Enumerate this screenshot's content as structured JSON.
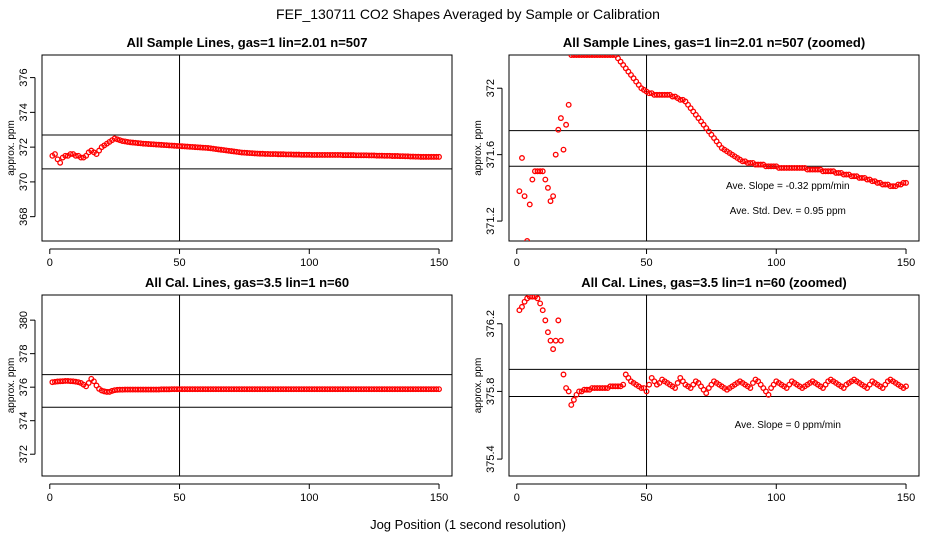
{
  "title": "FEF_130711  CO2 Shapes Averaged by Sample or Calibration",
  "xlabel": "Jog Position (1 second resolution)",
  "colors": {
    "points": "#ff0000",
    "axes": "#000000"
  },
  "chart_data": [
    {
      "type": "scatter",
      "title": "All Sample Lines, gas=1 lin=2.01 n=507",
      "ylabel": "approx. ppm",
      "xlim": [
        -3,
        155
      ],
      "ylim": [
        366.6,
        377.3
      ],
      "xticks": [
        0,
        50,
        100,
        150
      ],
      "yticks": [
        368,
        370,
        372,
        374,
        376
      ],
      "hlines": [
        372.7,
        370.75
      ],
      "vline": 50,
      "annotations": [],
      "x_start": 1,
      "x_step": 1,
      "y": [
        371.5,
        371.6,
        371.3,
        371.1,
        371.4,
        371.5,
        371.5,
        371.6,
        371.6,
        371.5,
        371.5,
        371.4,
        371.4,
        371.5,
        371.7,
        371.8,
        371.7,
        371.6,
        371.8,
        372.0,
        372.1,
        372.2,
        372.3,
        372.4,
        372.5,
        372.45,
        372.4,
        372.35,
        372.33,
        372.3,
        372.28,
        372.26,
        372.25,
        372.23,
        372.22,
        372.2,
        372.19,
        372.18,
        372.17,
        372.16,
        372.15,
        372.14,
        372.13,
        372.12,
        372.11,
        372.1,
        372.09,
        372.08,
        372.07,
        372.06,
        372.05,
        372.04,
        372.03,
        372.02,
        372.01,
        372.0,
        371.99,
        371.98,
        371.97,
        371.96,
        371.95,
        371.93,
        371.91,
        371.89,
        371.87,
        371.85,
        371.83,
        371.81,
        371.79,
        371.77,
        371.75,
        371.73,
        371.71,
        371.69,
        371.68,
        371.67,
        371.66,
        371.65,
        371.64,
        371.63,
        371.62,
        371.62,
        371.61,
        371.61,
        371.6,
        371.6,
        371.6,
        371.59,
        371.59,
        371.59,
        371.58,
        371.58,
        371.58,
        371.57,
        371.57,
        371.57,
        371.56,
        371.56,
        371.56,
        371.56,
        371.55,
        371.55,
        371.55,
        371.55,
        371.55,
        371.55,
        371.55,
        371.55,
        371.55,
        371.55,
        371.55,
        371.55,
        371.54,
        371.54,
        371.54,
        371.54,
        371.54,
        371.53,
        371.53,
        371.53,
        371.53,
        371.53,
        371.52,
        371.52,
        371.52,
        371.51,
        371.51,
        371.51,
        371.5,
        371.5,
        371.5,
        371.49,
        371.49,
        371.49,
        371.48,
        371.48,
        371.47,
        371.47,
        371.46,
        371.46,
        371.45,
        371.45,
        371.44,
        371.44,
        371.44,
        371.44,
        371.44,
        371.44,
        371.44,
        371.44
      ]
    },
    {
      "type": "scatter",
      "title": "All Sample Lines, gas=1 lin=2.01 n=507 (zoomed)",
      "ylabel": "approx. ppm",
      "xlim": [
        -3,
        155
      ],
      "ylim": [
        371.08,
        372.2
      ],
      "xticks": [
        0,
        50,
        100,
        150
      ],
      "yticks": [
        371.2,
        371.6,
        372.0
      ],
      "hlines": [
        371.745,
        371.53
      ],
      "vline": 50,
      "annotations": [
        "Ave. Slope =  -0.32  ppm/min",
        "Ave. Std. Dev. =  0.95  ppm"
      ],
      "x_start": 1,
      "x_step": 1,
      "y": [
        371.38,
        371.58,
        371.35,
        371.08,
        371.3,
        371.45,
        371.5,
        371.5,
        371.5,
        371.5,
        371.45,
        371.4,
        371.32,
        371.35,
        371.6,
        371.75,
        371.82,
        371.63,
        371.78,
        371.9,
        372.2,
        372.2,
        372.2,
        372.2,
        372.2,
        372.2,
        372.2,
        372.2,
        372.2,
        372.2,
        372.2,
        372.2,
        372.2,
        372.2,
        372.2,
        372.2,
        372.2,
        372.2,
        372.18,
        372.16,
        372.14,
        372.12,
        372.1,
        372.08,
        372.06,
        372.04,
        372.02,
        372.0,
        371.99,
        371.98,
        371.97,
        371.97,
        371.96,
        371.96,
        371.96,
        371.96,
        371.96,
        371.96,
        371.96,
        371.95,
        371.95,
        371.94,
        371.93,
        371.93,
        371.92,
        371.9,
        371.88,
        371.86,
        371.84,
        371.82,
        371.8,
        371.78,
        371.76,
        371.74,
        371.72,
        371.7,
        371.68,
        371.66,
        371.64,
        371.63,
        371.62,
        371.61,
        371.6,
        371.59,
        371.58,
        371.57,
        371.56,
        371.56,
        371.55,
        371.55,
        371.55,
        371.54,
        371.54,
        371.54,
        371.54,
        371.53,
        371.53,
        371.53,
        371.53,
        371.53,
        371.52,
        371.52,
        371.52,
        371.52,
        371.52,
        371.52,
        371.52,
        371.52,
        371.52,
        371.52,
        371.52,
        371.51,
        371.51,
        371.51,
        371.51,
        371.51,
        371.51,
        371.5,
        371.5,
        371.5,
        371.5,
        371.5,
        371.49,
        371.49,
        371.49,
        371.48,
        371.48,
        371.48,
        371.47,
        371.47,
        371.47,
        371.46,
        371.46,
        371.46,
        371.45,
        371.45,
        371.44,
        371.44,
        371.43,
        371.43,
        371.42,
        371.42,
        371.42,
        371.41,
        371.41,
        371.41,
        371.42,
        371.42,
        371.43,
        371.43
      ]
    },
    {
      "type": "scatter",
      "title": "All Cal. Lines, gas=3.5 lin=1 n=60",
      "ylabel": "approx. ppm",
      "xlim": [
        -3,
        155
      ],
      "ylim": [
        370.7,
        381.5
      ],
      "xticks": [
        0,
        50,
        100,
        150
      ],
      "yticks": [
        372,
        374,
        376,
        378,
        380
      ],
      "hlines": [
        376.75,
        374.8
      ],
      "vline": 50,
      "annotations": [],
      "x_start": 1,
      "x_step": 1,
      "y": [
        376.3,
        376.32,
        376.34,
        376.35,
        376.36,
        376.37,
        376.37,
        376.36,
        376.35,
        376.33,
        376.3,
        376.25,
        376.15,
        376.05,
        376.25,
        376.5,
        376.35,
        376.1,
        375.9,
        375.8,
        375.75,
        375.72,
        375.72,
        375.78,
        375.82,
        375.84,
        375.85,
        375.85,
        375.86,
        375.86,
        375.86,
        375.86,
        375.86,
        375.86,
        375.86,
        375.86,
        375.86,
        375.86,
        375.86,
        375.86,
        375.86,
        375.86,
        375.87,
        375.87,
        375.87,
        375.87,
        375.88,
        375.88,
        375.88,
        375.88,
        375.88,
        375.88,
        375.88,
        375.88,
        375.88,
        375.88,
        375.88,
        375.88,
        375.88,
        375.88,
        375.88,
        375.88,
        375.88,
        375.88,
        375.88,
        375.88,
        375.88,
        375.88,
        375.88,
        375.88,
        375.88,
        375.88,
        375.88,
        375.88,
        375.88,
        375.88,
        375.88,
        375.88,
        375.88,
        375.88,
        375.88,
        375.88,
        375.88,
        375.88,
        375.88,
        375.88,
        375.88,
        375.88,
        375.88,
        375.88,
        375.88,
        375.88,
        375.88,
        375.88,
        375.88,
        375.88,
        375.88,
        375.88,
        375.88,
        375.88,
        375.88,
        375.88,
        375.88,
        375.88,
        375.88,
        375.88,
        375.88,
        375.88,
        375.88,
        375.88,
        375.88,
        375.88,
        375.88,
        375.88,
        375.88,
        375.88,
        375.88,
        375.88,
        375.88,
        375.88,
        375.88,
        375.88,
        375.88,
        375.88,
        375.88,
        375.88,
        375.88,
        375.88,
        375.88,
        375.88,
        375.88,
        375.88,
        375.88,
        375.88,
        375.88,
        375.88,
        375.88,
        375.88,
        375.88,
        375.88,
        375.88,
        375.88,
        375.88,
        375.88,
        375.88,
        375.88,
        375.88,
        375.88,
        375.88,
        375.88
      ]
    },
    {
      "type": "scatter",
      "title": "All Cal. Lines, gas=3.5 lin=1 n=60 (zoomed)",
      "ylabel": "approx. ppm",
      "xlim": [
        -3,
        155
      ],
      "ylim": [
        375.3,
        376.37
      ],
      "xticks": [
        0,
        50,
        100,
        150
      ],
      "yticks": [
        375.4,
        375.8,
        376.2
      ],
      "hlines": [
        375.93,
        375.77
      ],
      "vline": 50,
      "annotations": [
        "Ave. Slope =  0  ppm/min"
      ],
      "x_start": 1,
      "x_step": 1,
      "y": [
        376.28,
        376.3,
        376.33,
        376.35,
        376.36,
        376.36,
        376.36,
        376.35,
        376.32,
        376.28,
        376.22,
        376.15,
        376.1,
        376.05,
        376.1,
        376.22,
        376.1,
        375.9,
        375.82,
        375.8,
        375.72,
        375.75,
        375.78,
        375.8,
        375.8,
        375.81,
        375.81,
        375.81,
        375.82,
        375.82,
        375.82,
        375.82,
        375.82,
        375.82,
        375.82,
        375.83,
        375.83,
        375.83,
        375.83,
        375.83,
        375.84,
        375.9,
        375.88,
        375.86,
        375.85,
        375.84,
        375.83,
        375.82,
        375.82,
        375.8,
        375.84,
        375.88,
        375.86,
        375.84,
        375.85,
        375.87,
        375.86,
        375.85,
        375.84,
        375.83,
        375.82,
        375.85,
        375.88,
        375.86,
        375.84,
        375.83,
        375.82,
        375.84,
        375.86,
        375.85,
        375.83,
        375.81,
        375.79,
        375.82,
        375.84,
        375.86,
        375.85,
        375.84,
        375.83,
        375.82,
        375.81,
        375.82,
        375.83,
        375.84,
        375.85,
        375.86,
        375.85,
        375.84,
        375.83,
        375.82,
        375.85,
        375.87,
        375.86,
        375.84,
        375.82,
        375.8,
        375.78,
        375.82,
        375.84,
        375.86,
        375.85,
        375.84,
        375.83,
        375.82,
        375.84,
        375.86,
        375.85,
        375.84,
        375.83,
        375.82,
        375.83,
        375.84,
        375.85,
        375.86,
        375.85,
        375.84,
        375.83,
        375.82,
        375.84,
        375.86,
        375.87,
        375.86,
        375.85,
        375.84,
        375.83,
        375.82,
        375.84,
        375.85,
        375.86,
        375.87,
        375.86,
        375.85,
        375.84,
        375.83,
        375.82,
        375.84,
        375.86,
        375.85,
        375.84,
        375.83,
        375.82,
        375.84,
        375.86,
        375.87,
        375.86,
        375.85,
        375.84,
        375.83,
        375.82,
        375.83
      ]
    }
  ]
}
